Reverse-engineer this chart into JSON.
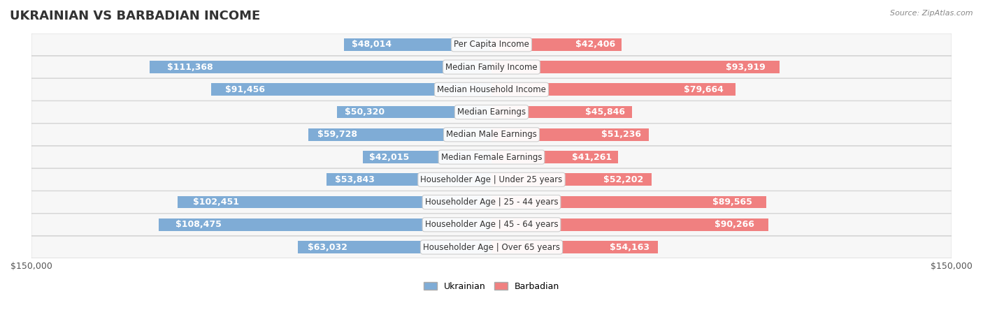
{
  "title": "UKRAINIAN VS BARBADIAN INCOME",
  "source": "Source: ZipAtlas.com",
  "categories": [
    "Per Capita Income",
    "Median Family Income",
    "Median Household Income",
    "Median Earnings",
    "Median Male Earnings",
    "Median Female Earnings",
    "Householder Age | Under 25 years",
    "Householder Age | 25 - 44 years",
    "Householder Age | 45 - 64 years",
    "Householder Age | Over 65 years"
  ],
  "ukrainian_values": [
    48014,
    111368,
    91456,
    50320,
    59728,
    42015,
    53843,
    102451,
    108475,
    63032
  ],
  "barbadian_values": [
    42406,
    93919,
    79664,
    45846,
    51236,
    41261,
    52202,
    89565,
    90266,
    54163
  ],
  "ukrainian_labels": [
    "$48,014",
    "$111,368",
    "$91,456",
    "$50,320",
    "$59,728",
    "$42,015",
    "$53,843",
    "$102,451",
    "$108,475",
    "$63,032"
  ],
  "barbadian_labels": [
    "$42,406",
    "$93,919",
    "$79,664",
    "$45,846",
    "$51,236",
    "$41,261",
    "$52,202",
    "$89,565",
    "$90,266",
    "$54,163"
  ],
  "max_val": 150000,
  "ukrainian_color": "#7facd6",
  "barbadian_color": "#f08080",
  "ukrainian_dark_color": "#4472c4",
  "barbadian_dark_color": "#e05080",
  "bg_color": "#f5f5f5",
  "row_bg_color": "#eeeeee",
  "bar_height": 0.55,
  "label_fontsize": 9,
  "title_fontsize": 13,
  "category_fontsize": 8.5
}
